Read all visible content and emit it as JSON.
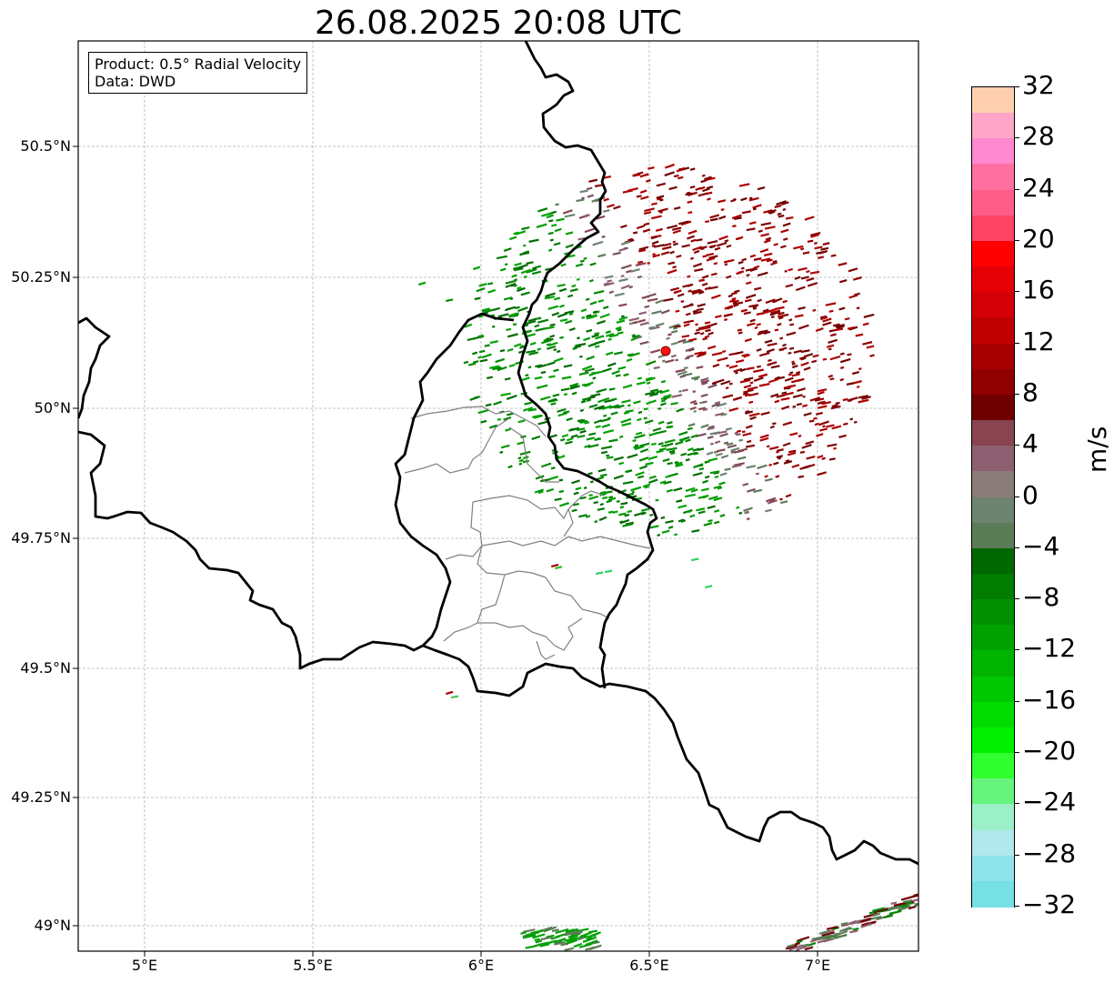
{
  "title": "26.08.2025 20:08 UTC",
  "info_box": {
    "product": "Product: 0.5° Radial Velocity",
    "data_source": "Data: DWD"
  },
  "axes": {
    "lat_labels": [
      "50.5°N",
      "50.25°N",
      "50°N",
      "49.75°N",
      "49.5°N",
      "49.25°N",
      "49°N"
    ],
    "lon_labels": [
      "5°E",
      "5.5°E",
      "6°E",
      "6.5°E",
      "7°E"
    ],
    "grid": true
  },
  "map": {
    "extent_lon": [
      4.8,
      7.3
    ],
    "extent_lat": [
      48.95,
      50.7
    ],
    "radar_site": {
      "lon": 6.55,
      "lat": 50.11,
      "marker_color": "#ff1010"
    },
    "country_border_color": "#000000",
    "admin_border_color": "#808080"
  },
  "colorbar": {
    "unit": "m/s",
    "range": [
      -32,
      32
    ],
    "tick_labels": [
      "32",
      "28",
      "24",
      "20",
      "16",
      "12",
      "8",
      "4",
      "0",
      "−4",
      "−8",
      "−12",
      "−16",
      "−20",
      "−24",
      "−28",
      "−32"
    ],
    "tick_values": [
      32,
      28,
      24,
      20,
      16,
      12,
      8,
      4,
      0,
      -4,
      -8,
      -12,
      -16,
      -20,
      -24,
      -28,
      -32
    ],
    "colors_top_to_bottom": [
      "#ffcfb0",
      "#ffa6c8",
      "#ff88d0",
      "#ff70a0",
      "#ff5c88",
      "#ff4466",
      "#ff0000",
      "#e50008",
      "#d40008",
      "#c00000",
      "#a80000",
      "#900000",
      "#700000",
      "#884450",
      "#8c6070",
      "#8a7c78",
      "#6c8470",
      "#5c7c58",
      "#006800",
      "#007c00",
      "#009000",
      "#00a200",
      "#00b400",
      "#00c800",
      "#00dc00",
      "#00f000",
      "#30ff30",
      "#66f47c",
      "#9cf0c8",
      "#b0e8ec",
      "#8ee4ea",
      "#76e0e4"
    ]
  }
}
